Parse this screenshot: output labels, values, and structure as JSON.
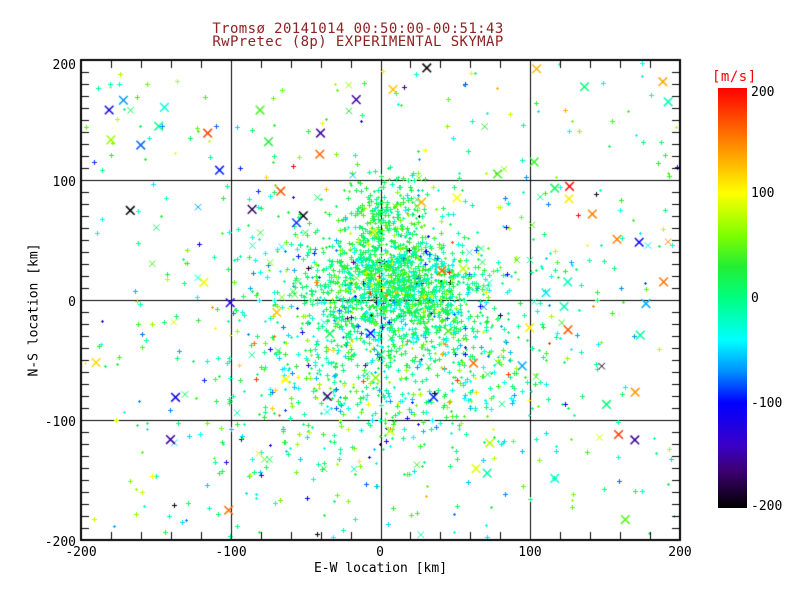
{
  "title": {
    "line1": "Tromsø 20141014 00:50:00-00:51:43",
    "line2": "RwPretec (8p) EXPERIMENTAL SKYMAP",
    "color": "#8b2323"
  },
  "chart_data": {
    "type": "scatter",
    "title": "Tromsø 20141014 00:50:00-00:51:43",
    "subtitle": "RwPretec (8p) EXPERIMENTAL SKYMAP",
    "xlabel": "E-W location [km]",
    "ylabel": "N-S location [km]",
    "xlim": [
      -200,
      200
    ],
    "ylim": [
      -200,
      200
    ],
    "xtick_labels": [
      "-200",
      "-100",
      "0",
      "100",
      "200"
    ],
    "ytick_labels": [
      "200",
      "100",
      "0",
      "-100",
      "-200"
    ],
    "xtick_values": [
      -200,
      -100,
      0,
      100,
      200
    ],
    "ytick_values": [
      200,
      100,
      0,
      -100,
      -200
    ],
    "grid": true,
    "grid_values": [
      -100,
      0,
      100
    ],
    "minor_tick_step_x": 20,
    "minor_tick_step_y": 10,
    "axis_color": "#000000",
    "marker_color_meaning": "Doppler velocity [m/s]",
    "colorbar": {
      "title": "[m/s]",
      "title_color": "#ff0000",
      "min": -200,
      "max": 200,
      "tick_labels": [
        "200",
        "100",
        "0",
        "-100",
        "-200"
      ],
      "tick_values": [
        200,
        100,
        0,
        -100,
        -200
      ],
      "stops": [
        {
          "v": 200,
          "c": "#ff0000"
        },
        {
          "v": 150,
          "c": "#ff8000"
        },
        {
          "v": 100,
          "c": "#ffff00"
        },
        {
          "v": 60,
          "c": "#80ff00"
        },
        {
          "v": 30,
          "c": "#22ee33"
        },
        {
          "v": 0,
          "c": "#00ff80"
        },
        {
          "v": -40,
          "c": "#00ffff"
        },
        {
          "v": -70,
          "c": "#0090ff"
        },
        {
          "v": -100,
          "c": "#0000ff"
        },
        {
          "v": -140,
          "c": "#3a00c8"
        },
        {
          "v": -165,
          "c": "#3c0070"
        },
        {
          "v": -200,
          "c": "#000000"
        }
      ]
    },
    "points": {
      "note": "dense meteor-echo cloud; approximated by seeded generative clusters (x,y in km, v in m/s)",
      "seed": 20141014,
      "marker_small": "plus",
      "marker_large": "x",
      "clusters": [
        {
          "n": 1000,
          "cx": 12,
          "cy": 8,
          "sx": 28,
          "sy": 22,
          "vmean": 8,
          "vsd": 26,
          "outlier_frac": 0.04
        },
        {
          "n": 330,
          "cx": 2,
          "cy": 55,
          "sx": 15,
          "sy": 26,
          "vmean": 18,
          "vsd": 22,
          "outlier_frac": 0.03
        },
        {
          "n": 750,
          "cx": 5,
          "cy": -12,
          "sx": 55,
          "sy": 48,
          "vmean": 0,
          "vsd": 38,
          "outlier_frac": 0.05
        },
        {
          "n": 320,
          "cx": -5,
          "cy": -75,
          "sx": 60,
          "sy": 38,
          "vmean": 5,
          "vsd": 45,
          "outlier_frac": 0.06
        }
      ],
      "uniform_field": {
        "n": 380,
        "xmin": -198,
        "xmax": 198,
        "ymin": -198,
        "ymax": 198,
        "vmean": 10,
        "vsd": 55,
        "outlier_frac": 0.12
      },
      "x_markers_medium": {
        "n": 80,
        "cx": 5,
        "cy": 0,
        "sx": 95,
        "sy": 85,
        "vmean": 10,
        "vsd": 40,
        "outlier_frac": 0.1
      },
      "x_markers_large": {
        "n": 72,
        "xmin": -195,
        "xmax": 195,
        "ymin": -195,
        "ymax": 195,
        "v": "uniform"
      }
    }
  }
}
